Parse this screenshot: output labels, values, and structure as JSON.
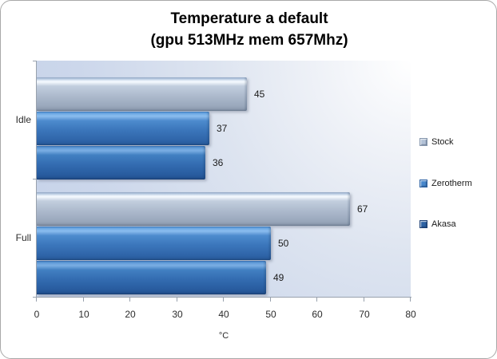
{
  "window": {
    "background_color": "#ffffff",
    "border_color": "#a9a9a9"
  },
  "chart_data": {
    "type": "bar",
    "orientation": "horizontal",
    "title_line1": "Temperature a default",
    "title_line2": "(gpu 513MHz mem 657Mhz)",
    "categories": [
      "Idle",
      "Full"
    ],
    "series": [
      {
        "name": "Stock",
        "css": "stock",
        "color": "#b2c1d6",
        "values": [
          45,
          67
        ]
      },
      {
        "name": "Zerotherm",
        "css": "zerotherm",
        "color": "#4787cb",
        "values": [
          37,
          50
        ]
      },
      {
        "name": "Akasa",
        "css": "akasa",
        "color": "#2d62a4",
        "values": [
          36,
          49
        ]
      }
    ],
    "xlabel": "°C",
    "xlim": [
      0,
      80
    ],
    "x_ticks": [
      0,
      10,
      20,
      30,
      40,
      50,
      60,
      70,
      80
    ],
    "grid": false,
    "data_labels": true,
    "legend_position": "right",
    "plot_background": "gradient white top-right to light blue bottom-left"
  }
}
